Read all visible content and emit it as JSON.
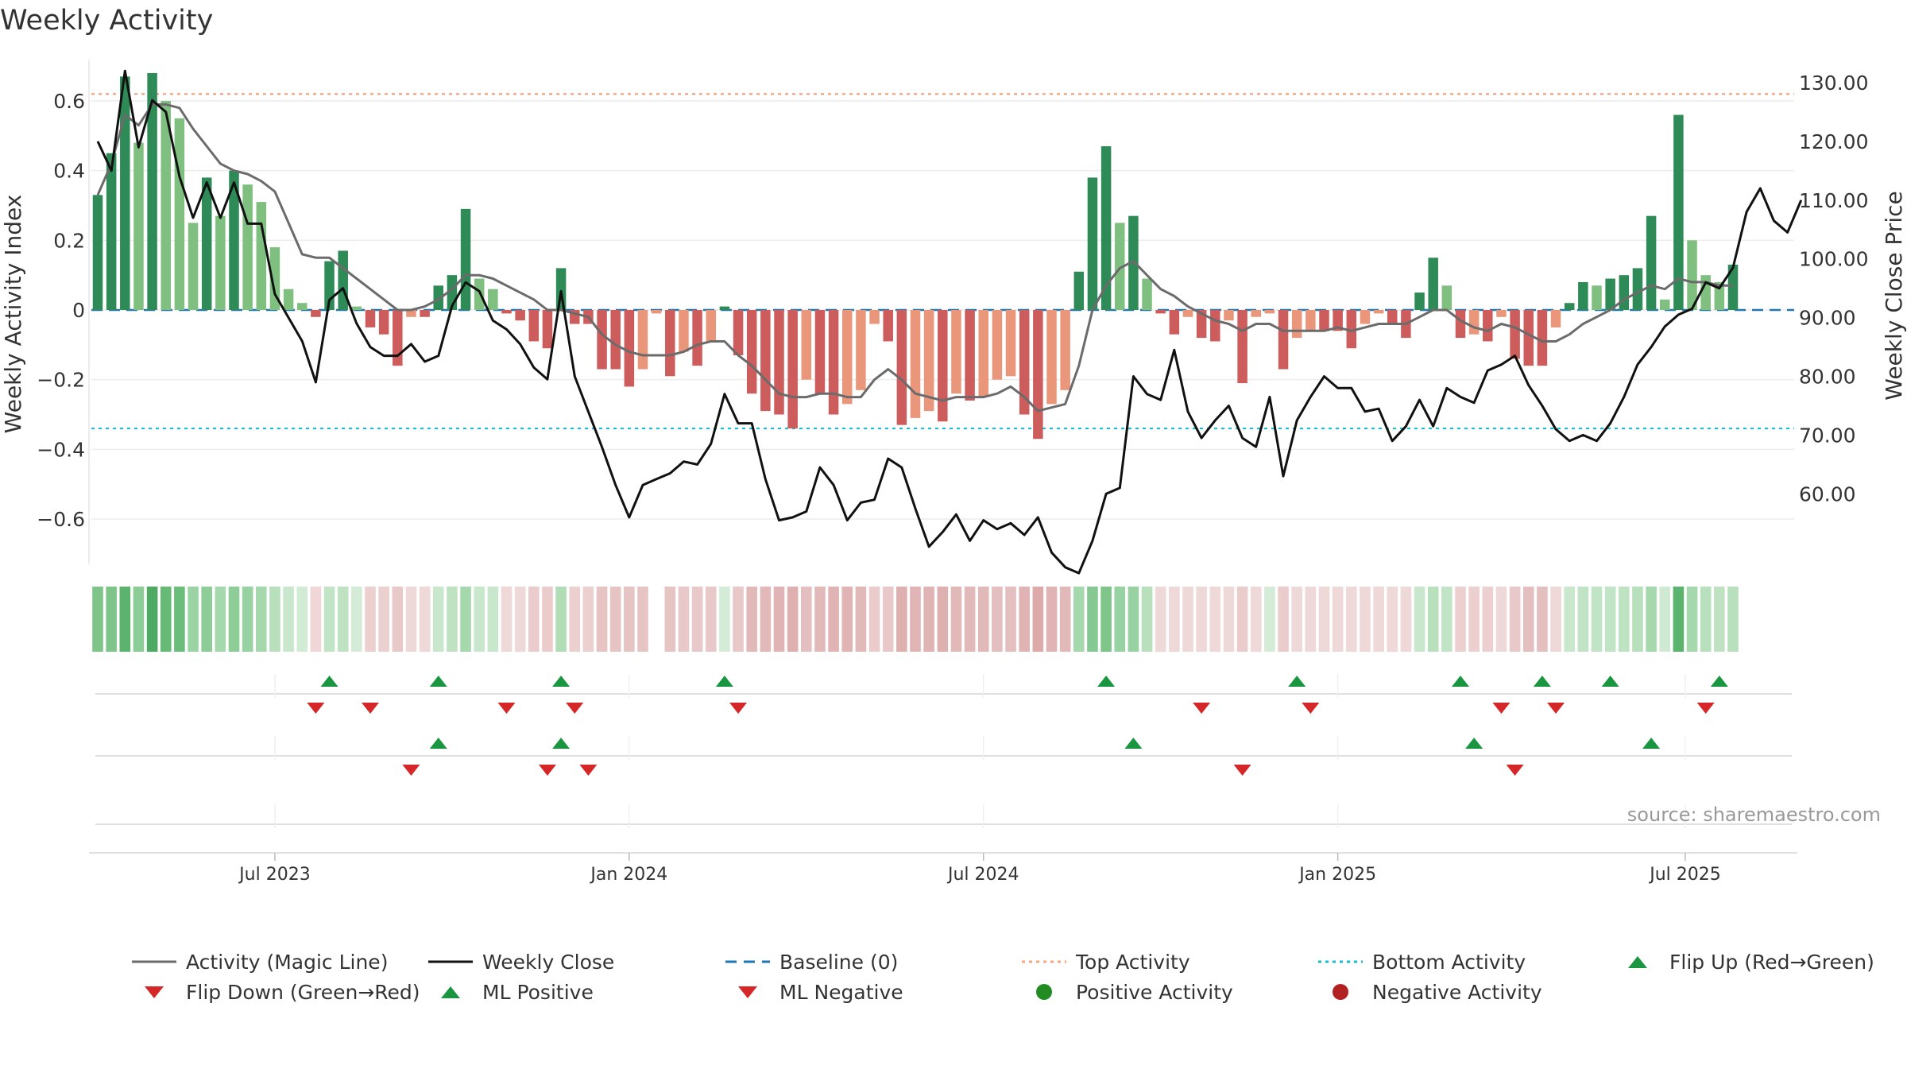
{
  "title": "Weekly Activity",
  "source": "source: sharemaestro.com",
  "colors": {
    "pos_dark": "#2e8b57",
    "pos_light": "#7fbf7f",
    "neg_dark": "#cd5c5c",
    "neg_light": "#e9967a",
    "magic": "#6b6b6b",
    "close": "#111111",
    "baseline": "#1f77b4",
    "top": "#f4a582",
    "bottom": "#17becf",
    "flip_up": "#1a9641",
    "flip_down": "#d62728",
    "pos_dot": "#228b22",
    "neg_dot": "#b22222"
  },
  "legend": [
    {
      "label": "Activity (Magic Line)",
      "symbol": "line-solid",
      "color": "#6b6b6b"
    },
    {
      "label": "Weekly Close",
      "symbol": "line-solid",
      "color": "#111111"
    },
    {
      "label": "Baseline (0)",
      "symbol": "line-dashed",
      "color": "#1f77b4"
    },
    {
      "label": "Top Activity",
      "symbol": "line-dotted",
      "color": "#f4a582"
    },
    {
      "label": "Bottom Activity",
      "symbol": "line-dotted",
      "color": "#17becf"
    },
    {
      "label": "Flip Up (Red→Green)",
      "symbol": "triangle-up",
      "color": "#1a9641"
    },
    {
      "label": "Flip Down (Green→Red)",
      "symbol": "triangle-down",
      "color": "#d62728"
    },
    {
      "label": "ML Positive",
      "symbol": "triangle-up",
      "color": "#1a9641"
    },
    {
      "label": "ML Negative",
      "symbol": "triangle-down",
      "color": "#d62728"
    },
    {
      "label": "Positive Activity",
      "symbol": "dot",
      "color": "#228b22"
    },
    {
      "label": "Negative Activity",
      "symbol": "dot",
      "color": "#b22222"
    }
  ],
  "chart_data": {
    "type": "bar+line",
    "title": "Weekly Activity",
    "ylabel_left": "Weekly Activity Index",
    "ylabel_right": "Weekly Close Price",
    "ylim_left": [
      -0.73,
      0.73
    ],
    "ylim_right": [
      48.0,
      134.6
    ],
    "yticks_left": [
      -0.6,
      -0.4,
      -0.2,
      0,
      0.2,
      0.4,
      0.6
    ],
    "yticks_left_labels": [
      "−0.6",
      "−0.4",
      "−0.2",
      "0",
      "0.2",
      "0.4",
      "0.6"
    ],
    "yticks_right": [
      60,
      70,
      80,
      90,
      100,
      110,
      120,
      130
    ],
    "yticks_right_labels": [
      "60.00",
      "70.00",
      "80.00",
      "90.00",
      "100.00",
      "110.00",
      "120.00",
      "130.00"
    ],
    "x_start": "2023-04-03",
    "x_ticks": [
      {
        "label": "Jul 2023",
        "week": 13
      },
      {
        "label": "Jan 2024",
        "week": 39
      },
      {
        "label": "Jul 2024",
        "week": 65
      },
      {
        "label": "Jan 2025",
        "week": 91
      },
      {
        "label": "Jul 2025",
        "week": 116.5
      }
    ],
    "top_activity": 0.62,
    "bottom_activity": -0.34,
    "baseline": 0,
    "activity": [
      0.33,
      0.45,
      0.67,
      0.48,
      0.68,
      0.6,
      0.55,
      0.25,
      0.38,
      0.27,
      0.4,
      0.36,
      0.31,
      0.18,
      0.06,
      0.02,
      -0.02,
      0.14,
      0.17,
      0.01,
      -0.05,
      -0.07,
      -0.16,
      -0.02,
      -0.02,
      0.07,
      0.1,
      0.29,
      0.09,
      0.06,
      -0.01,
      -0.03,
      -0.09,
      -0.11,
      0.12,
      -0.04,
      -0.04,
      -0.17,
      -0.17,
      -0.22,
      -0.17,
      -0.01,
      -0.19,
      -0.12,
      -0.16,
      -0.09,
      0.01,
      -0.13,
      -0.24,
      -0.29,
      -0.3,
      -0.34,
      -0.2,
      -0.24,
      -0.3,
      -0.27,
      -0.23,
      -0.04,
      -0.09,
      -0.33,
      -0.31,
      -0.29,
      -0.32,
      -0.24,
      -0.26,
      -0.25,
      -0.2,
      -0.19,
      -0.3,
      -0.37,
      -0.27,
      -0.23,
      0.11,
      0.38,
      0.47,
      0.25,
      0.27,
      0.09,
      -0.01,
      -0.07,
      -0.02,
      -0.08,
      -0.09,
      -0.03,
      -0.21,
      -0.02,
      -0.01,
      -0.17,
      -0.08,
      -0.06,
      -0.06,
      -0.06,
      -0.11,
      -0.04,
      -0.01,
      -0.04,
      -0.08,
      0.05,
      0.15,
      0.07,
      -0.08,
      -0.07,
      -0.09,
      -0.02,
      -0.14,
      -0.16,
      -0.16,
      -0.05,
      0.02,
      0.08,
      0.07,
      0.09,
      0.1,
      0.12,
      0.27,
      0.03,
      0.56,
      0.2,
      0.1,
      0.08,
      0.13
    ],
    "magic_line": [
      0.33,
      0.42,
      0.56,
      0.53,
      0.59,
      0.59,
      0.58,
      0.52,
      0.47,
      0.42,
      0.4,
      0.39,
      0.37,
      0.34,
      0.25,
      0.16,
      0.15,
      0.15,
      0.12,
      0.09,
      0.06,
      0.03,
      0.0,
      0.0,
      0.01,
      0.03,
      0.06,
      0.1,
      0.1,
      0.09,
      0.07,
      0.05,
      0.03,
      0.0,
      0.0,
      -0.01,
      -0.02,
      -0.07,
      -0.1,
      -0.12,
      -0.13,
      -0.13,
      -0.13,
      -0.12,
      -0.1,
      -0.09,
      -0.09,
      -0.13,
      -0.16,
      -0.2,
      -0.24,
      -0.25,
      -0.25,
      -0.24,
      -0.24,
      -0.25,
      -0.25,
      -0.2,
      -0.17,
      -0.2,
      -0.24,
      -0.25,
      -0.26,
      -0.25,
      -0.25,
      -0.25,
      -0.24,
      -0.22,
      -0.25,
      -0.29,
      -0.28,
      -0.27,
      -0.16,
      0.0,
      0.07,
      0.12,
      0.14,
      0.1,
      0.06,
      0.04,
      0.01,
      -0.01,
      -0.03,
      -0.04,
      -0.06,
      -0.04,
      -0.04,
      -0.06,
      -0.06,
      -0.06,
      -0.06,
      -0.05,
      -0.06,
      -0.05,
      -0.04,
      -0.04,
      -0.04,
      -0.02,
      0.0,
      0.0,
      -0.03,
      -0.05,
      -0.06,
      -0.04,
      -0.05,
      -0.07,
      -0.09,
      -0.09,
      -0.07,
      -0.04,
      -0.02,
      0.0,
      0.03,
      0.05,
      0.07,
      0.06,
      0.09,
      0.08,
      0.08,
      0.07,
      0.07
    ],
    "close": [
      120,
      115,
      132,
      119,
      127,
      125,
      114,
      107,
      113,
      107,
      113,
      106,
      106,
      94,
      90,
      86,
      79,
      93,
      95,
      89,
      85,
      83.5,
      83.5,
      85.5,
      82.5,
      83.5,
      92,
      96,
      94.5,
      89.5,
      88,
      85.5,
      81.5,
      79.5,
      94.5,
      80,
      74,
      68,
      61.5,
      56,
      61.5,
      62.5,
      63.5,
      65.5,
      65,
      68.5,
      77,
      72,
      72,
      62.5,
      55.5,
      56,
      57,
      64.5,
      61.5,
      55.5,
      58.5,
      59,
      66,
      64.5,
      57.5,
      51,
      53.5,
      56.5,
      52,
      55.5,
      54,
      55,
      53,
      56,
      50,
      47.5,
      46.5,
      52,
      60,
      61,
      80,
      77,
      76,
      84.5,
      74,
      69.5,
      72.5,
      75,
      69.5,
      68,
      76.5,
      63,
      72.5,
      76.5,
      80,
      78,
      78,
      74,
      74.5,
      69,
      71.5,
      76,
      71.5,
      78,
      76.5,
      75.5,
      81,
      82,
      83.5,
      78.5,
      75,
      71,
      69,
      70,
      69,
      72,
      76.5,
      82,
      85,
      88.5,
      90.5,
      91.5,
      96,
      95,
      98.5,
      108,
      112,
      106.5,
      104.5,
      110
    ],
    "strip_colors": [
      "#7fc58a",
      "#7fc58a",
      "#5bb36e",
      "#8ccc96",
      "#4eaa63",
      "#66ba76",
      "#6bbd7a",
      "#9cd3a4",
      "#8fcd98",
      "#a6d8ad",
      "#8fcd98",
      "#99d2a2",
      "#a6d8ad",
      "#b8e0bd",
      "#c8e7cc",
      "#d1ebd4",
      "#f0d6d6",
      "#c2e4c6",
      "#bfe2c3",
      "#d4ecd7",
      "#ecd0d0",
      "#ecd0d0",
      "#e8c8c8",
      "#efd8d8",
      "#efd8d8",
      "#c8e7cc",
      "#bfe2c3",
      "#a6d8ad",
      "#c8e7cc",
      "#c8e7cc",
      "#efd8d8",
      "#efd8d8",
      "#ebcccc",
      "#ebcccc",
      "#b0dcb6",
      "#ecd0d0",
      "#ecd0d0",
      "#e6c4c4",
      "#e6c4c4",
      "#e6c4c4",
      "#e6c4c4",
      null,
      "#e6c4c4",
      "#e8c8c8",
      "#e8c8c8",
      "#e8c8c8",
      "#d4ecd7",
      "#e8c8c8",
      "#e2b9b9",
      "#e2b9b9",
      "#e0b4b4",
      "#dfb0b0",
      "#e4bfbf",
      "#e2b9b9",
      "#e0b4b4",
      "#e0b4b4",
      "#e2b9b9",
      "#ebcccc",
      "#e8c8c8",
      "#dfb0b0",
      "#e0b4b4",
      "#e0b4b4",
      "#dfb0b0",
      "#e2b9b9",
      "#e2b9b9",
      "#e2b9b9",
      "#e4bfbf",
      "#e4bfbf",
      "#e0b4b4",
      "#ddaaaa",
      "#e0b4b4",
      "#e2b9b9",
      "#a6d8ad",
      "#86c891",
      "#7fc58a",
      "#99d2a2",
      "#99d2a2",
      "#b8e0bd",
      "#efd8d8",
      "#efd8d8",
      "#efd8d8",
      "#efd8d8",
      "#efd8d8",
      "#efd8d8",
      "#ebcccc",
      "#efd8d8",
      "#d4ecd7",
      "#ebcccc",
      "#efd8d8",
      "#efd8d8",
      "#efd8d8",
      "#efd8d8",
      "#efd8d8",
      "#efd8d8",
      "#efd8d8",
      "#efd8d8",
      "#efd8d8",
      "#c8e7cc",
      "#b8e0bd",
      "#c2e4c6",
      "#ecd0d0",
      "#ecd0d0",
      "#ecd0d0",
      "#efd8d8",
      "#e8c8c8",
      "#e4bfbf",
      "#e4bfbf",
      "#efd8d8",
      "#c8e7cc",
      "#c2e4c6",
      "#c2e4c6",
      "#c2e4c6",
      "#bfe2c3",
      "#b8e0bd",
      "#a6d8ad",
      "#cfe9d2",
      "#5bb36e",
      "#a6d8ad",
      "#b8e0bd",
      "#bfe2c3",
      "#b8e0bd"
    ],
    "flip_up": [
      17,
      25,
      34,
      46,
      74,
      88,
      100,
      106,
      111,
      119
    ],
    "flip_down": [
      16,
      20,
      30,
      35,
      47,
      81,
      89,
      103,
      107,
      118
    ],
    "ml_positive": [
      25,
      34,
      76,
      101,
      114
    ],
    "ml_negative": [
      23,
      33,
      36,
      84,
      104
    ]
  }
}
